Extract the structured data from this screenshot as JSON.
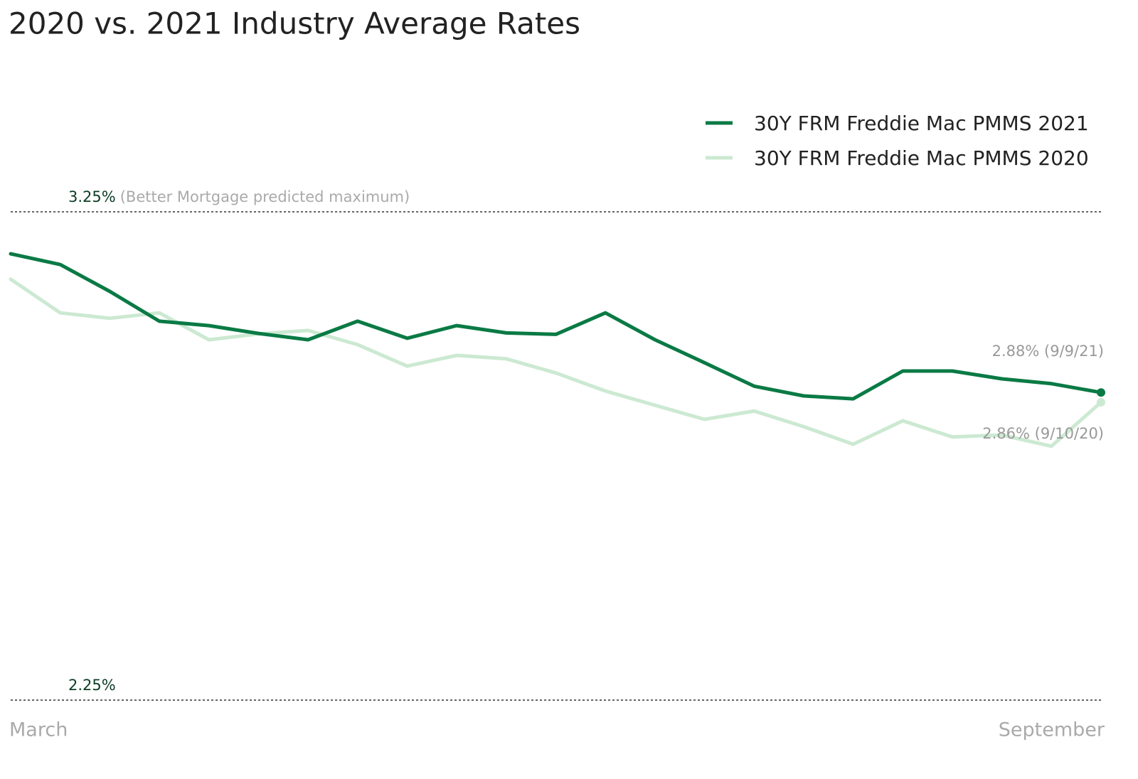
{
  "chart_data": {
    "type": "line",
    "title": "2020 vs. 2021 Industry Average Rates",
    "annotation": "(Better Mortgage predicted maximum)",
    "categories": [
      "March",
      null,
      null,
      null,
      null,
      null,
      null,
      null,
      null,
      null,
      null,
      null,
      null,
      null,
      null,
      null,
      null,
      null,
      null,
      null,
      null,
      null,
      "September"
    ],
    "series": [
      {
        "name": "30Y FRM Freddie Mac PMMS 2021",
        "color": "#0a7a45",
        "values": [
          3.164,
          3.142,
          3.087,
          3.026,
          3.017,
          3.001,
          2.988,
          3.026,
          2.991,
          3.017,
          3.002,
          2.999,
          3.043,
          2.988,
          2.941,
          2.893,
          2.873,
          2.867,
          2.924,
          2.924,
          2.908,
          2.898,
          2.88
        ],
        "value_labels": [
          null,
          null,
          null,
          null,
          null,
          null,
          null,
          null,
          null,
          null,
          null,
          null,
          null,
          null,
          null,
          null,
          null,
          null,
          null,
          null,
          null,
          null,
          "2.88% (9/9/21)"
        ]
      },
      {
        "name": "30Y FRM Freddie Mac PMMS 2020",
        "color": "#cce9d2",
        "values": [
          3.112,
          3.043,
          3.032,
          3.043,
          2.988,
          3.0,
          3.007,
          2.978,
          2.934,
          2.956,
          2.949,
          2.92,
          2.883,
          2.854,
          2.825,
          2.842,
          2.81,
          2.774,
          2.822,
          2.789,
          2.793,
          2.77,
          2.86
        ],
        "value_labels": [
          null,
          null,
          null,
          null,
          null,
          null,
          null,
          null,
          null,
          null,
          null,
          null,
          null,
          null,
          null,
          null,
          null,
          null,
          null,
          null,
          null,
          null,
          "2.86% (9/10/20)"
        ]
      }
    ],
    "ylim": [
      2.25,
      3.25
    ],
    "yticks": [
      {
        "value": 2.25,
        "label": "2.25%"
      },
      {
        "value": 3.25,
        "label": "3.25%"
      }
    ],
    "grid": true
  }
}
